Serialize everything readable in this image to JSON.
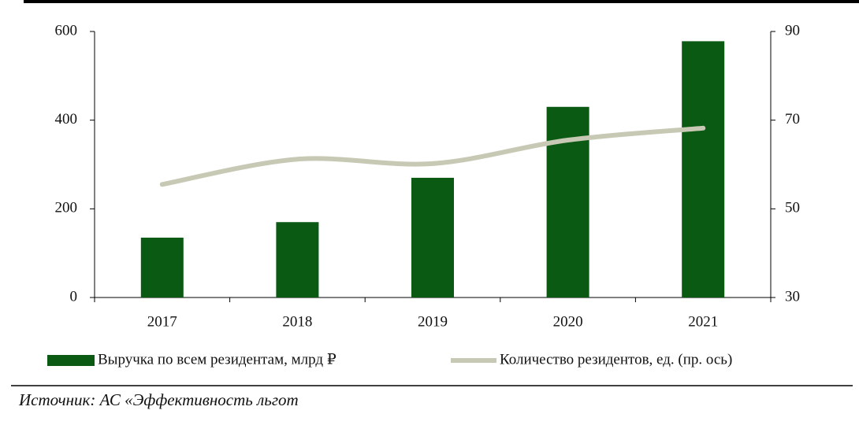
{
  "chart_data": {
    "type": "bar_line",
    "categories": [
      "2017",
      "2018",
      "2019",
      "2020",
      "2021"
    ],
    "series": [
      {
        "name": "Выручка по всем резидентам, млрд ₽",
        "type": "bar",
        "color": "#0b5a14",
        "values": [
          135,
          170,
          270,
          430,
          578
        ]
      },
      {
        "name": "Количество резидентов, ед. (пр. ось)",
        "type": "line",
        "axis": "y2",
        "color": "#c8c9b4",
        "values": [
          55.5,
          61.2,
          60.2,
          65.5,
          68.2
        ]
      }
    ],
    "ylim": [
      0,
      600
    ],
    "yticks": [
      0,
      200,
      400,
      600
    ],
    "y2lim": [
      30,
      90
    ],
    "y2ticks": [
      30,
      50,
      70,
      90
    ],
    "source": "Источник: АС «Эффективность льгот"
  }
}
